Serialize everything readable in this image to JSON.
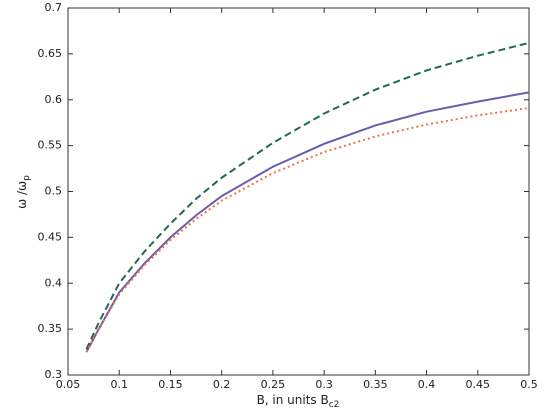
{
  "chart_data": {
    "type": "line",
    "xlabel": "B, in units B",
    "xlabel_subscript": "c2",
    "ylabel": "ω /ω",
    "ylabel_subscript": "p",
    "x": [
      0.068,
      0.08,
      0.1,
      0.125,
      0.15,
      0.175,
      0.2,
      0.25,
      0.3,
      0.35,
      0.4,
      0.45,
      0.5
    ],
    "series": [
      {
        "color": "#6a5cae",
        "style": "solid",
        "values": [
          0.325,
          0.35,
          0.39,
          0.422,
          0.45,
          0.474,
          0.495,
          0.527,
          0.552,
          0.572,
          0.587,
          0.598,
          0.608
        ]
      },
      {
        "color": "#1f6b4f",
        "style": "dashed",
        "values": [
          0.328,
          0.357,
          0.4,
          0.435,
          0.465,
          0.492,
          0.515,
          0.553,
          0.585,
          0.611,
          0.632,
          0.648,
          0.662
        ]
      },
      {
        "color": "#ee7048",
        "style": "dotted",
        "values": [
          0.325,
          0.35,
          0.388,
          0.42,
          0.447,
          0.47,
          0.49,
          0.52,
          0.543,
          0.56,
          0.573,
          0.583,
          0.591
        ]
      }
    ],
    "xlim": [
      0.05,
      0.5
    ],
    "xticks": [
      0.05,
      0.1,
      0.15,
      0.2,
      0.25,
      0.3,
      0.35,
      0.4,
      0.45,
      0.5
    ],
    "ylim": [
      0.3,
      0.7
    ],
    "yticks": [
      0.3,
      0.35,
      0.4,
      0.45,
      0.5,
      0.55,
      0.6,
      0.65,
      0.7
    ],
    "grid": false
  }
}
